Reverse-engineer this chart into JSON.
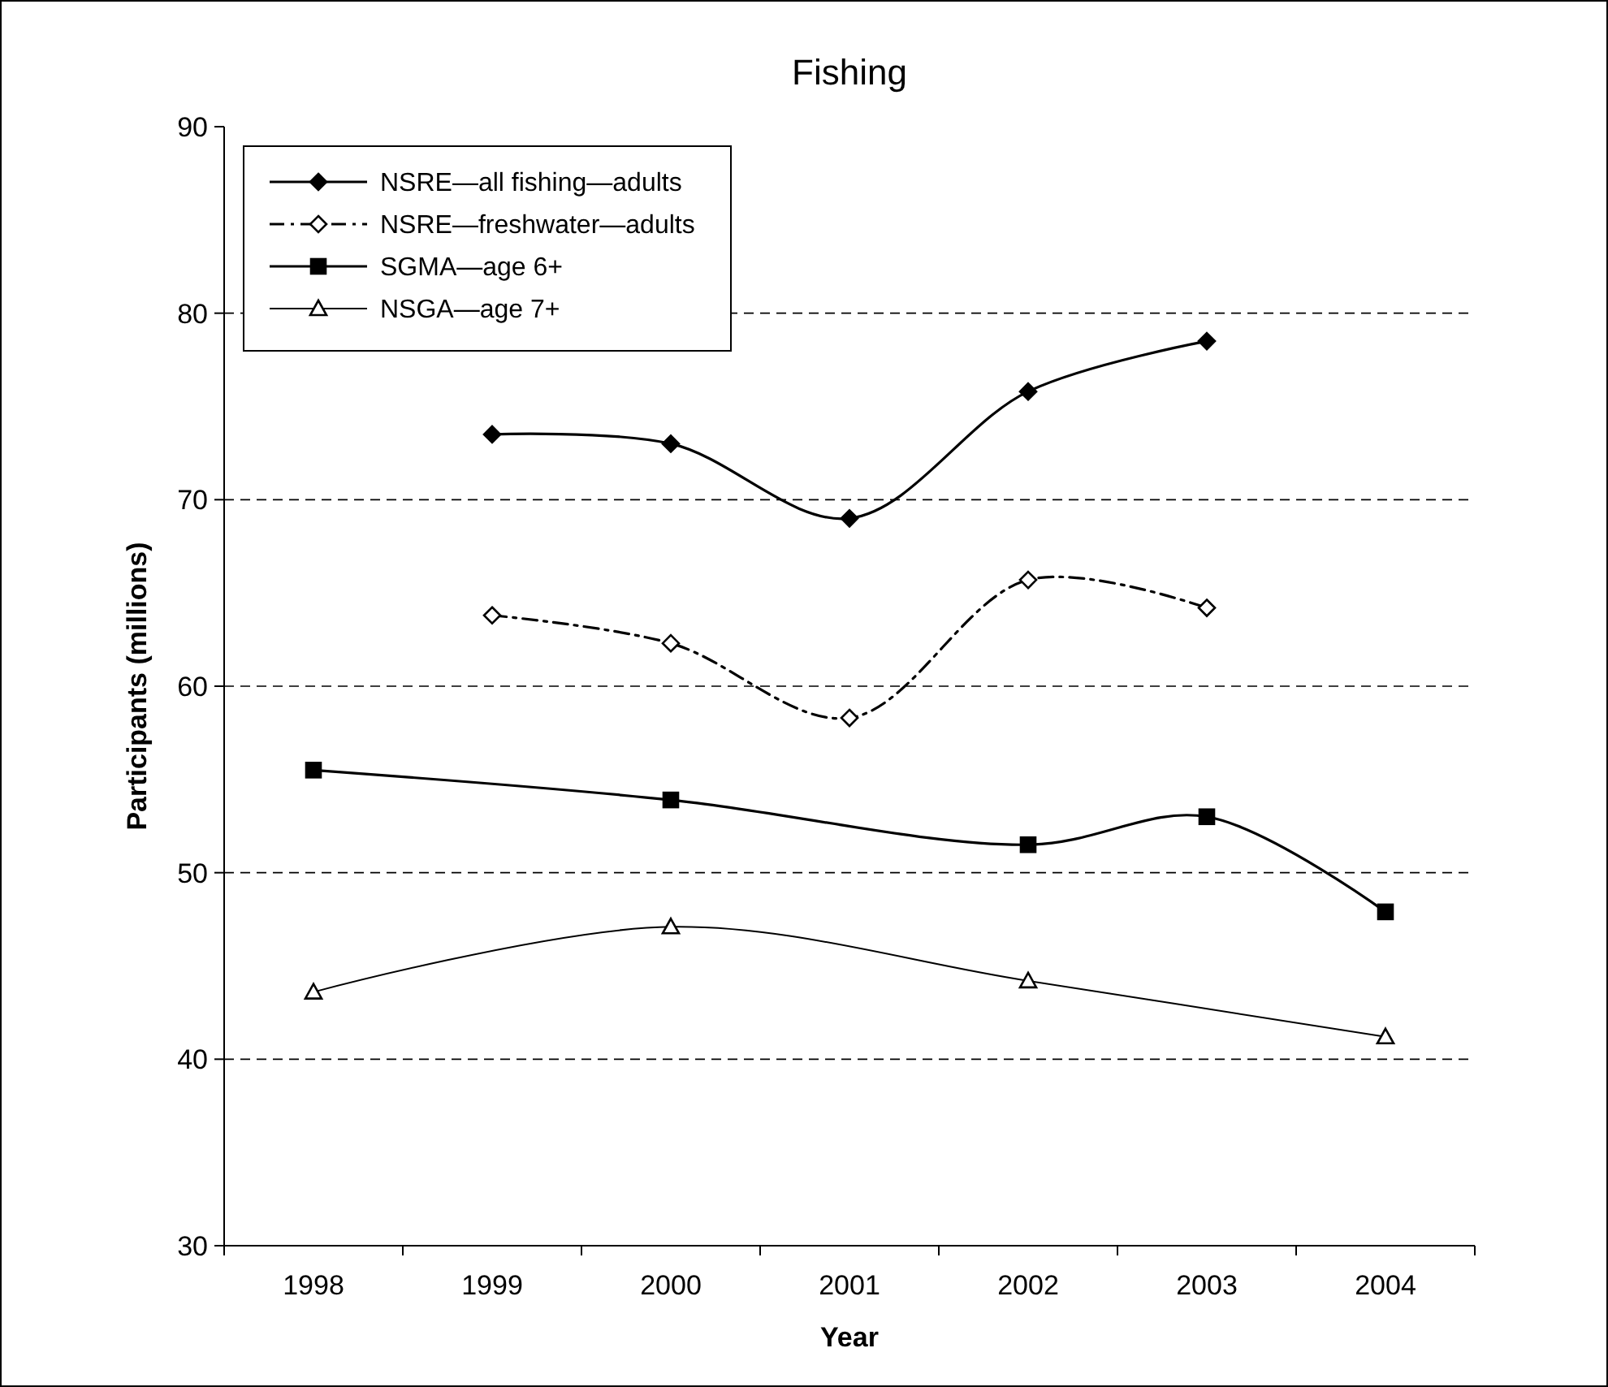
{
  "chart_data": {
    "type": "line",
    "title": "Fishing",
    "xlabel": "Year",
    "ylabel": "Participants (millions)",
    "categories": [
      "1998",
      "1999",
      "2000",
      "2001",
      "2002",
      "2003",
      "2004"
    ],
    "ylim": [
      30,
      90
    ],
    "yticks": [
      30,
      40,
      50,
      60,
      70,
      80,
      90
    ],
    "grid": "y",
    "legend": "top left",
    "series": [
      {
        "name": "NSRE—all fishing—adults",
        "color": "#000000",
        "marker": "diamond",
        "line_style": "solid",
        "values": [
          null,
          73.5,
          73,
          69,
          75.8,
          78.5,
          null
        ]
      },
      {
        "name": "NSRE—freshwater—adults",
        "color": "#000000",
        "marker": "diamond",
        "line_style": "dashed",
        "values": [
          null,
          63.8,
          62.3,
          58.3,
          65.7,
          64.2,
          null
        ]
      },
      {
        "name": "SGMA—age 6+",
        "color": "#000000",
        "marker": "square",
        "line_style": "solid",
        "values": [
          55.5,
          null,
          53.9,
          null,
          51.5,
          53,
          47.9
        ]
      },
      {
        "name": "NSGA—age 7+",
        "color": "#000000",
        "marker": "triangle",
        "line_style": "solid",
        "values": [
          43.6,
          null,
          47.1,
          null,
          44.2,
          null,
          41.2
        ]
      }
    ]
  }
}
